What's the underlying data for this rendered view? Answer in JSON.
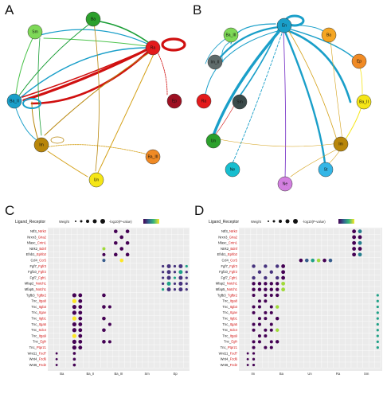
{
  "panels": {
    "A": {
      "label": "A",
      "nodes": [
        "Sm",
        "Ba",
        "Ra",
        "Ep",
        "Ba_II",
        "Im",
        "Un",
        "Ba_III"
      ]
    },
    "B": {
      "label": "B",
      "nodes": [
        "En",
        "Ba_III",
        "Im_II",
        "Ba",
        "Ep",
        "Ra",
        "Sm",
        "Ba_II",
        "Im",
        "Un",
        "Ne",
        "St"
      ]
    },
    "C": {
      "label": "C",
      "legend_title": "Ligand_Receptor",
      "legend_weight": "Weight",
      "legend_color": "-log10(P-value)",
      "rows": [
        "Ntf3_Ntrk2",
        "Nrxn3_Gria2",
        "Nfasc_Cntn1",
        "Ntrk2_Bdnf",
        "Efnb1_Ephb2",
        "Ccl4_Ccr5",
        "Fgf7_Fgfr3",
        "Fgf10_Fgfr2",
        "Fgf7_Fgfr1",
        "Mfap2_Notch1",
        "Mfap5_Notch1",
        "Tgfb3_Tgfbr2",
        "Tnc_Itga8",
        "Tnc_Itgb3",
        "Tnc_Itgav",
        "Tnc_Itgb1",
        "Tnc_Itga5",
        "Tnc_Sdc4",
        "Tnc_Itga9",
        "Tnc_Egfr",
        "Tnc_Ptprz1",
        "Wnt11_Fzd7",
        "Wnt4_Fzd6",
        "Wnt6_Fzd2"
      ],
      "groups": [
        "Ba",
        "Ba_II",
        "Ba_III",
        "Sm",
        "Ep"
      ]
    },
    "D": {
      "label": "D",
      "legend_title": "Ligand_Receptor",
      "legend_weight": "Weight",
      "legend_color": "-log10(P-value)",
      "rows": [
        "Ntf3_Ntrk2",
        "Nrxn3_Gria2",
        "Nfasc_Cntn1",
        "Ntrk2_Bdnf",
        "Efnb1_Ephb2",
        "Ccl4_Ccr5",
        "Fgf7_Fgfr3",
        "Fgf10_Fgfr2",
        "Fgf7_Fgfr1",
        "Mfap2_Notch1",
        "Mfap5_Notch1",
        "Tgfb3_Tgfbr2",
        "Tnc_Itga8",
        "Tnc_Itgb3",
        "Tnc_Itgav",
        "Tnc_Itgb1",
        "Tnc_Itga5",
        "Tnc_Sdc4",
        "Tnc_Itga9",
        "Tnc_Egfr",
        "Tnc_Ptprz1",
        "Wnt11_Fzd7",
        "Wnt4_Fzd6",
        "Wnt6_Fzd2"
      ],
      "groups": [
        "Im",
        "Ba",
        "Un",
        "Ra",
        "Sm"
      ]
    }
  },
  "colors": {
    "viridis_low": "#440154",
    "viridis_mid": "#21908c",
    "viridis_high": "#fde725",
    "red": "#d01010",
    "cyan": "#1a9fc9",
    "brown": "#b8860b"
  }
}
